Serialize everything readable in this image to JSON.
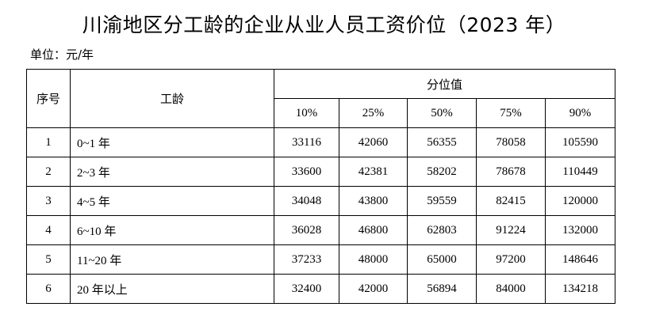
{
  "title": "川渝地区分工龄的企业从业人员工资价位（2023 年）",
  "unit": "单位：元/年",
  "table": {
    "col_seq": "序号",
    "col_tenure": "工龄",
    "col_group": "分位值",
    "percentiles": [
      "10%",
      "25%",
      "50%",
      "75%",
      "90%"
    ],
    "rows": [
      {
        "seq": "1",
        "tenure": "0~1 年",
        "values": [
          "33116",
          "42060",
          "56355",
          "78058",
          "105590"
        ]
      },
      {
        "seq": "2",
        "tenure": "2~3 年",
        "values": [
          "33600",
          "42381",
          "58202",
          "78678",
          "110449"
        ]
      },
      {
        "seq": "3",
        "tenure": "4~5 年",
        "values": [
          "34048",
          "43800",
          "59559",
          "82415",
          "120000"
        ]
      },
      {
        "seq": "4",
        "tenure": "6~10 年",
        "values": [
          "36028",
          "46800",
          "62803",
          "91224",
          "132000"
        ]
      },
      {
        "seq": "5",
        "tenure": "11~20 年",
        "values": [
          "37233",
          "48000",
          "65000",
          "97200",
          "148646"
        ]
      },
      {
        "seq": "6",
        "tenure": "20 年以上",
        "values": [
          "32400",
          "42000",
          "56894",
          "84000",
          "134218"
        ]
      }
    ]
  }
}
